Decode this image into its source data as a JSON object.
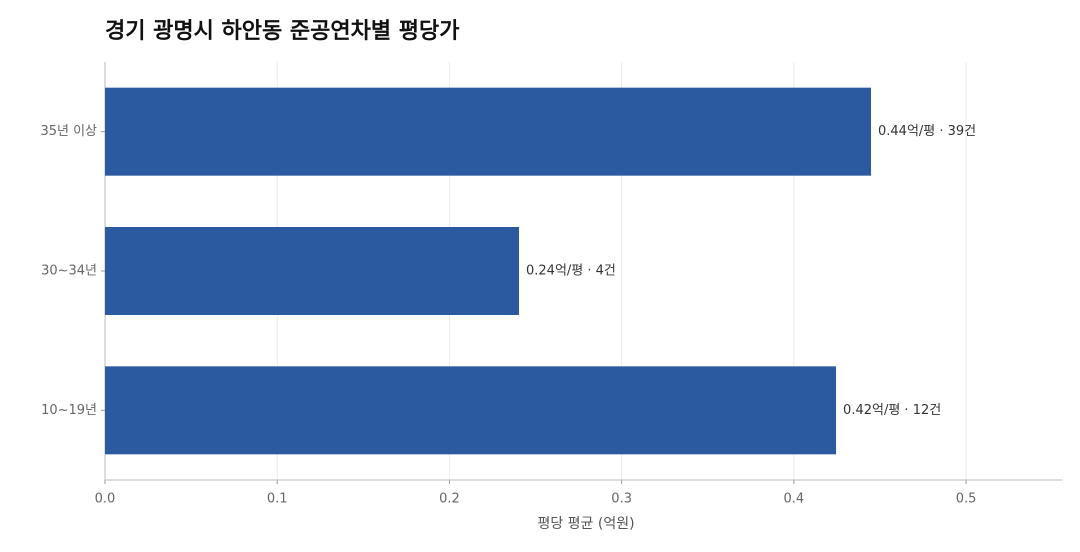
{
  "chart_data": {
    "type": "bar",
    "orientation": "horizontal",
    "title": "경기 광명시 하안동 준공연차별 평당가",
    "x_label": "평당 평균 (억원)",
    "categories": [
      "35년 이상",
      "30~34년",
      "10~19년"
    ],
    "values": [
      0.4448,
      0.2404,
      0.4245
    ],
    "value_labels": [
      "0.44억/평 · 39건",
      "0.24억/평 · 4건",
      "0.42억/평 · 12건"
    ],
    "color": "#2c5aa0",
    "xlim": [
      0,
      0.5557
    ],
    "xticks": [
      {
        "value": 0,
        "label": "0.0"
      },
      0.1,
      0.2,
      0.3,
      0.4,
      0.5
    ],
    "grid": true
  }
}
